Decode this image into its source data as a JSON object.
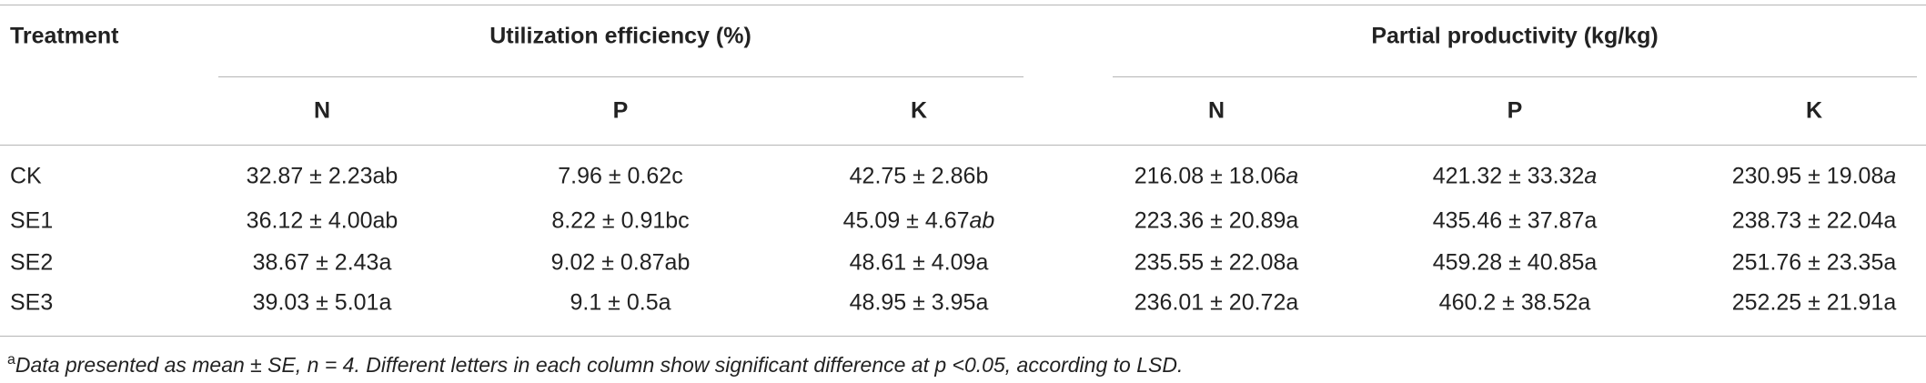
{
  "header": {
    "treatment": "Treatment",
    "groups": [
      "Utilization efficiency (%)",
      "Partial productivity (kg/kg)"
    ],
    "subheaders": [
      "N",
      "P",
      "K",
      "N",
      "P",
      "K"
    ]
  },
  "table": {
    "rows": [
      [
        "CK",
        "32.87 ± 2.23ab",
        "7.96 ± 0.62c",
        "42.75 ± 2.86b",
        {
          "text": "216.08 ± 18.06",
          "italic": "a"
        },
        {
          "text": "421.32 ± 33.32",
          "italic": "a"
        },
        {
          "text": "230.95 ± 19.08",
          "italic": "a"
        }
      ],
      [
        "SE1",
        "36.12 ± 4.00ab",
        "8.22 ± 0.91bc",
        {
          "text": "45.09 ± 4.67",
          "italic": "ab"
        },
        "223.36 ± 20.89a",
        "435.46 ± 37.87a",
        "238.73 ± 22.04a"
      ],
      [
        "SE2",
        "38.67 ± 2.43a",
        "9.02 ± 0.87ab",
        "48.61 ± 4.09a",
        "235.55 ± 22.08a",
        "459.28 ± 40.85a",
        "251.76 ± 23.35a"
      ],
      [
        "SE3",
        "39.03 ± 5.01a",
        "9.1 ± 0.5a",
        "48.95 ± 3.95a",
        "236.01 ± 20.72a",
        "460.2 ± 38.52a",
        "252.25 ± 21.91a"
      ]
    ]
  },
  "footnote": {
    "marker": "a",
    "text": "Data presented as mean ± SE, n = 4. Different letters in each column show significant difference at p <0.05, according to LSD."
  }
}
